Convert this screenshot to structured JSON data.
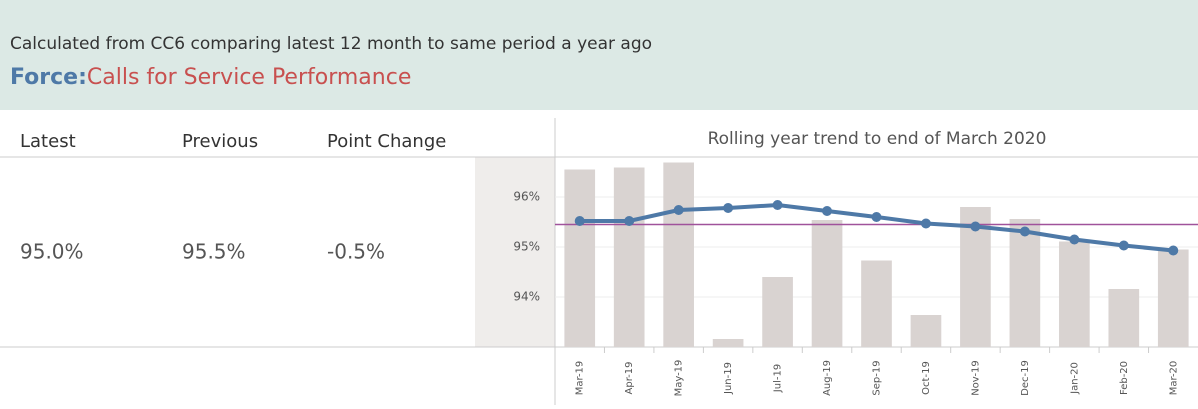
{
  "header": {
    "subtitle": "Calculated from CC6 comparing latest 12 month to same period a year ago",
    "title_prefix": "Force:",
    "title": "Calls for Service Performance"
  },
  "table": {
    "headers": [
      "Latest",
      "Previous",
      "Point Change"
    ],
    "rows": [
      [
        "95.0%",
        "95.5%",
        "-0.5%"
      ]
    ]
  },
  "chart_data": {
    "type": "bar",
    "title": "Rolling year trend to end of March 2020",
    "categories": [
      "Mar-19",
      "Apr-19",
      "May-19",
      "Jun-19",
      "Jul-19",
      "Aug-19",
      "Sep-19",
      "Oct-19",
      "Nov-19",
      "Dec-19",
      "Jan-20",
      "Feb-20",
      "Mar-20"
    ],
    "series": [
      {
        "type": "bar",
        "color": "#d9d3d1",
        "values": [
          96.55,
          96.59,
          96.69,
          93.16,
          94.4,
          95.54,
          94.73,
          93.64,
          95.8,
          95.56,
          95.11,
          94.16,
          94.95
        ]
      },
      {
        "type": "line",
        "color": "#4e79a7",
        "values": [
          95.52,
          95.52,
          95.74,
          95.78,
          95.84,
          95.72,
          95.6,
          95.47,
          95.41,
          95.31,
          95.15,
          95.03,
          94.93
        ]
      }
    ],
    "reference_line": {
      "value": 95.45,
      "color": "#a0529b"
    },
    "ylim": [
      93,
      96.8
    ],
    "yticks": [
      {
        "value": 94,
        "label": "94%"
      },
      {
        "value": 95,
        "label": "95%"
      },
      {
        "value": 96,
        "label": "96%"
      }
    ],
    "grid": true
  }
}
